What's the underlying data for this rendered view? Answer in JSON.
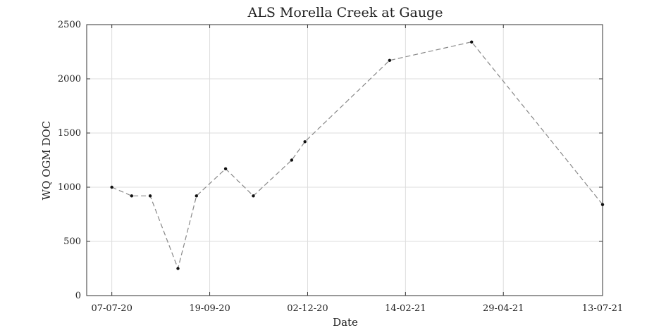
{
  "chart_data": {
    "type": "line",
    "title": "ALS Morella Creek at Gauge",
    "xlabel": "Date",
    "ylabel": "WQ OGM DOC",
    "x_ticks": [
      "07-07-20",
      "19-09-20",
      "02-12-20",
      "14-02-21",
      "29-04-21",
      "13-07-21"
    ],
    "y_ticks": [
      "0",
      "500",
      "1000",
      "1500",
      "2000",
      "2500"
    ],
    "xlim": [
      "2020-06-18",
      "2021-07-13"
    ],
    "ylim": [
      0,
      2500
    ],
    "grid": true,
    "series": [
      {
        "line_style": "dashed",
        "line_color": "#888888",
        "marker_color": "#111111",
        "points": [
          {
            "x": "2020-07-07",
            "y": 1000
          },
          {
            "x": "2020-07-22",
            "y": 920
          },
          {
            "x": "2020-08-05",
            "y": 920
          },
          {
            "x": "2020-08-26",
            "y": 250
          },
          {
            "x": "2020-09-09",
            "y": 920
          },
          {
            "x": "2020-10-01",
            "y": 1170
          },
          {
            "x": "2020-10-22",
            "y": 920
          },
          {
            "x": "2020-11-20",
            "y": 1250
          },
          {
            "x": "2020-11-30",
            "y": 1420
          },
          {
            "x": "2021-02-02",
            "y": 2170
          },
          {
            "x": "2021-04-05",
            "y": 2340
          },
          {
            "x": "2021-07-13",
            "y": 840
          }
        ]
      }
    ]
  }
}
